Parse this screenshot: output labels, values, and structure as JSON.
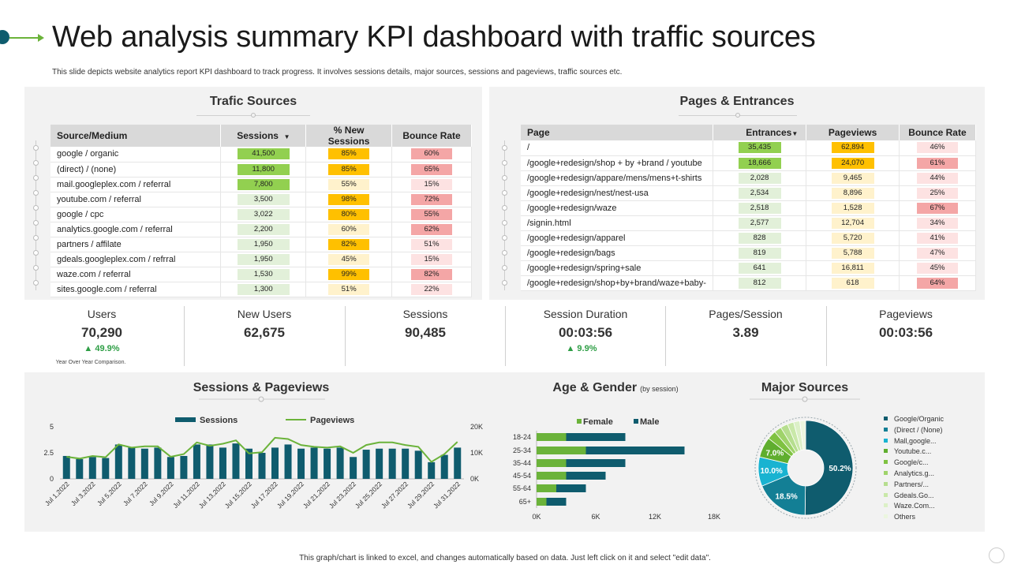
{
  "header": {
    "title": "Web analysis summary KPI dashboard with traffic sources",
    "subtitle": "This slide depicts website analytics report KPI dashboard to track progress. It involves sessions details, major sources, sessions and pageviews, traffic sources etc."
  },
  "traffic": {
    "title": "Trafic Sources",
    "headers": [
      "Source/Medium",
      "Sessions",
      "% New Sessions",
      "Bounce Rate"
    ],
    "sort_icon": "▼",
    "rows": [
      {
        "source": "google / organic",
        "sessions": "41,500",
        "new": "85%",
        "bounce": "60%"
      },
      {
        "source": "(direct) / (none)",
        "sessions": "11,800",
        "new": "85%",
        "bounce": "65%"
      },
      {
        "source": "mail.googleplex.com  / referral",
        "sessions": "7,800",
        "new": "55%",
        "bounce": "15%"
      },
      {
        "source": "youtube.com / referral",
        "sessions": "3,500",
        "new": "98%",
        "bounce": "72%"
      },
      {
        "source": "google / cpc",
        "sessions": "3,022",
        "new": "80%",
        "bounce": "55%"
      },
      {
        "source": "analytics.google.com / referral",
        "sessions": "2,200",
        "new": "60%",
        "bounce": "62%"
      },
      {
        "source": "partners / affilate",
        "sessions": "1,950",
        "new": "82%",
        "bounce": "51%"
      },
      {
        "source": "gdeals.googleplex.com / refrral",
        "sessions": "1,950",
        "new": "45%",
        "bounce": "15%"
      },
      {
        "source": "waze.com / referral",
        "sessions": "1,530",
        "new": "99%",
        "bounce": "82%"
      },
      {
        "source": "sites.google.com / referral",
        "sessions": "1,300",
        "new": "51%",
        "bounce": "22%"
      }
    ]
  },
  "pages": {
    "title": "Pages & Entrances",
    "headers": [
      "Page",
      "Entrances",
      "Pageviews",
      "Bounce Rate"
    ],
    "sort_icon": "▼",
    "rows": [
      {
        "page": "/",
        "entrances": "35,435",
        "pageviews": "62,894",
        "bounce": "46%"
      },
      {
        "page": "/google+redesign/shop + by +brand / youtube",
        "entrances": "18,666",
        "pageviews": "24,070",
        "bounce": "61%"
      },
      {
        "page": "/google+redesign/appare/mens/mens+t-shirts",
        "entrances": "2,028",
        "pageviews": "9,465",
        "bounce": "44%"
      },
      {
        "page": "/google+redesign/nest/nest-usa",
        "entrances": "2,534",
        "pageviews": "8,896",
        "bounce": "25%"
      },
      {
        "page": "/google+redesign/waze",
        "entrances": "2,518",
        "pageviews": "1,528",
        "bounce": "67%"
      },
      {
        "page": "/signin.html",
        "entrances": "2,577",
        "pageviews": "12,704",
        "bounce": "34%"
      },
      {
        "page": "/google+redesign/apparel",
        "entrances": "828",
        "pageviews": "5,720",
        "bounce": "41%"
      },
      {
        "page": "/google+redesign/bags",
        "entrances": "819",
        "pageviews": "5,788",
        "bounce": "47%"
      },
      {
        "page": "/google+redesign/spring+sale",
        "entrances": "641",
        "pageviews": "16,811",
        "bounce": "45%"
      },
      {
        "page": "/google+redesign/shop+by+brand/waze+baby-",
        "entrances": "812",
        "pageviews": "618",
        "bounce": "64%"
      }
    ]
  },
  "kpis": [
    {
      "label": "Users",
      "value": "70,290",
      "delta": "▲ 49.9%",
      "note": "Year Over Year Comparison."
    },
    {
      "label": "New Users",
      "value": "62,675",
      "delta": "",
      "note": ""
    },
    {
      "label": "Sessions",
      "value": "90,485",
      "delta": "",
      "note": ""
    },
    {
      "label": "Session Duration",
      "value": "00:03:56",
      "delta": "▲  9.9%",
      "note": ""
    },
    {
      "label": "Pages/Session",
      "value": "3.89",
      "delta": "",
      "note": ""
    },
    {
      "label": "Pageviews",
      "value": "00:03:56",
      "delta": "",
      "note": ""
    }
  ],
  "colors": {
    "green_strong": "#92d050",
    "green_light": "#e2f0d9",
    "yellow_strong": "#ffc000",
    "yellow_light": "#fff2cc",
    "red_strong": "#f4a6a6",
    "red_light": "#fde2e2",
    "bar_teal": "#0f5c6e",
    "line_green": "#6bb33a",
    "female_green": "#6bb33a",
    "male_teal": "#0f5c6e"
  },
  "chart_data": [
    {
      "type": "bar",
      "title": "Sessions & Pageviews",
      "legend": [
        "Sessions",
        "Pageviews"
      ],
      "categories": [
        "Jul 1,2022",
        "Jul 2,2022",
        "Jul 3,2022",
        "Jul 4,2022",
        "Jul 5,2022",
        "Jul 6,2022",
        "Jul 7,2022",
        "Jul 8,2022",
        "Jul 9,2022",
        "Jul 10,2022",
        "Jul 11,2022",
        "Jul 12,2022",
        "Jul 13,2022",
        "Jul 14,2022",
        "Jul 15,2022",
        "Jul 16,2022",
        "Jul 17,2022",
        "Jul 18,2022",
        "Jul 19,2022",
        "Jul 20,2022",
        "Jul 21,2022",
        "Jul 22,2022",
        "Jul 23,2022",
        "Jul 24,2022",
        "Jul 25,2022",
        "Jul 26,2022",
        "Jul 27,2022",
        "Jul 28,2022",
        "Jul 29,2022",
        "Jul 30,2022",
        "Jul 31,2022"
      ],
      "tick_labels": [
        "Jul 1,2022",
        "Jul 3,2022",
        "Jul 5,2022",
        "Jul 7,2022",
        "Jul 9,2022",
        "Jul 11,2022",
        "Jul 13,2022",
        "Jul 15,2022",
        "Jul 17,2022",
        "Jul 19,2022",
        "Jul 21,2022",
        "Jul 23,2022",
        "Jul 25,2022",
        "Jul 27,2022",
        "Jul 29,2022",
        "Jul 31,2022"
      ],
      "series": [
        {
          "name": "Sessions",
          "axis": "left",
          "values": [
            2.2,
            1.9,
            2.1,
            2.0,
            3.3,
            3.0,
            2.9,
            3.0,
            2.1,
            2.2,
            3.3,
            3.3,
            3.0,
            3.4,
            2.9,
            2.5,
            3.0,
            3.3,
            2.9,
            3.0,
            2.9,
            3.0,
            2.1,
            2.8,
            2.9,
            2.9,
            2.9,
            2.7,
            1.6,
            2.3,
            3.0
          ]
        },
        {
          "name": "Pageviews",
          "axis": "right",
          "values": [
            8.5,
            7.8,
            8.8,
            8.3,
            13.2,
            12.0,
            12.5,
            12.5,
            8.5,
            9.5,
            14.0,
            12.7,
            13.5,
            14.8,
            9.8,
            10.2,
            15.8,
            15.3,
            13.0,
            12.3,
            12.0,
            12.5,
            10.0,
            13.0,
            14.0,
            14.0,
            13.0,
            12.3,
            6.5,
            9.5,
            14.2
          ]
        }
      ],
      "yticks_left": [
        "5",
        "2.5",
        "0"
      ],
      "yticks_right": [
        "20K",
        "10K",
        "0K"
      ],
      "ylim_left": [
        0,
        5
      ],
      "ylim_right": [
        0,
        20
      ]
    },
    {
      "type": "bar",
      "orientation": "horizontal",
      "stacked": true,
      "title": "Age & Gender",
      "title_note": "(by session)",
      "legend": [
        "Female",
        "Male"
      ],
      "categories": [
        "18-24",
        "25-34",
        "35-44",
        "45-54",
        "55-64",
        "65+"
      ],
      "series": [
        {
          "name": "Female",
          "values": [
            3000,
            5000,
            3000,
            3000,
            2000,
            1000
          ]
        },
        {
          "name": "Male",
          "values": [
            6000,
            10000,
            6000,
            4000,
            3000,
            2000
          ]
        }
      ],
      "xticks": [
        "0K",
        "6K",
        "12K",
        "18K"
      ],
      "xlim": [
        0,
        18000
      ]
    },
    {
      "type": "pie",
      "donut": true,
      "title": "Major Sources",
      "slices": [
        {
          "label": "Google/Organic",
          "value": 50.2,
          "color": "#0f5c6e",
          "shown": "50.2%"
        },
        {
          "label": "(Direct / (None)",
          "value": 18.5,
          "color": "#137f95",
          "shown": "18.5%"
        },
        {
          "label": "Mall,google...",
          "value": 10.0,
          "color": "#19b3d1",
          "shown": "10.0%"
        },
        {
          "label": "Youtube.c...",
          "value": 7.0,
          "color": "#5fae2e",
          "shown": "7.0%"
        },
        {
          "label": "Google/c...",
          "value": 3.0,
          "color": "#7fc241",
          "shown": ""
        },
        {
          "label": "Analytics.g...",
          "value": 2.5,
          "color": "#9fd36a",
          "shown": ""
        },
        {
          "label": "Partners/...",
          "value": 2.5,
          "color": "#b6de8f",
          "shown": ""
        },
        {
          "label": "Gdeals.Go...",
          "value": 2.2,
          "color": "#c9e8a9",
          "shown": ""
        },
        {
          "label": "Waze.Com...",
          "value": 2.1,
          "color": "#dcf0c7",
          "shown": ""
        },
        {
          "label": "Others",
          "value": 2.0,
          "color": "#ebf6df",
          "shown": ""
        }
      ]
    }
  ],
  "footer": "This graph/chart is linked to excel, and changes automatically based on data. Just left click on it and select \"edit data\"."
}
